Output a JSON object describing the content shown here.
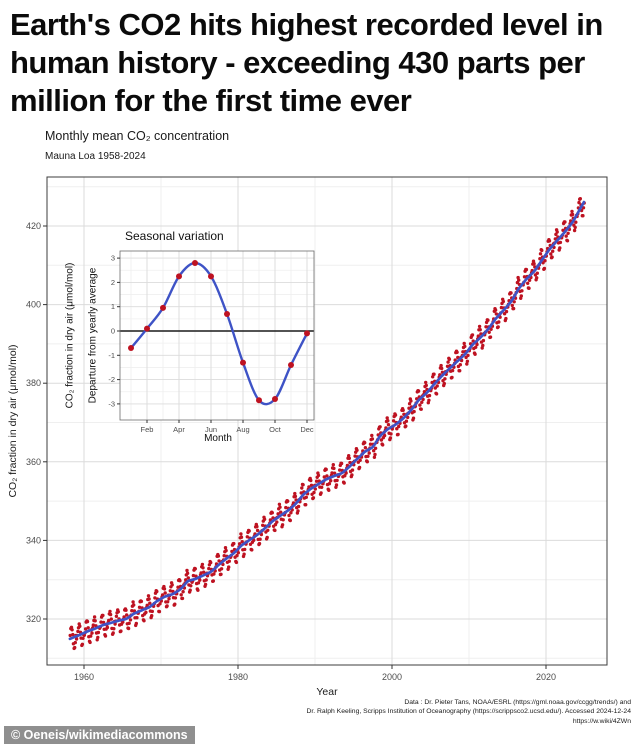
{
  "headline": {
    "lines": [
      "Earth's CO2 hits highest recorded level in",
      "human history - exceeding 430 parts per",
      "million for the first time ever"
    ]
  },
  "figure": {
    "title": "Monthly mean CO₂ concentration",
    "subtitle": "Mauna Loa 1958-2024",
    "x_label": "Year",
    "y_label": "CO₂ fraction in dry air (μmol/mol)",
    "x_ticks": [
      1960,
      1980,
      2000,
      2020
    ],
    "y_ticks": [
      320,
      340,
      360,
      380,
      400,
      420
    ]
  },
  "inset": {
    "title": "Seasonal variation",
    "y_label_line1": "CO₂ fraction in dry air (μmol/mol)",
    "y_label_line2": "Departure from yearly average",
    "x_label": "Month",
    "x_tick_labels": [
      "Feb",
      "Apr",
      "Jun",
      "Aug",
      "Oct",
      "Dec"
    ],
    "y_ticks": [
      3,
      2,
      1,
      0,
      -1,
      -2,
      -3
    ]
  },
  "attribution": {
    "line1": "Data : Dr. Pieter Tans, NOAA/ESRL (https://gml.noaa.gov/ccgg/trends/) and",
    "line2": "Dr. Ralph Keeling, Scripps Institution of Oceanography (https://scrippsco2.ucsd.edu/). Accessed 2024-12-24",
    "line3": "https://w.wiki/4ZWn"
  },
  "watermark": "© Oeneis/wikimediacommons",
  "colors": {
    "point_red": "#BE1221",
    "line_blue": "#3E53C6",
    "grid_major": "#DBDBDB",
    "grid_minor": "#EFEFEF",
    "panel_border": "#3C3C3C",
    "tick_color": "#333333",
    "tick_label": "#4D4D4D",
    "zero_line": "#1A1A1A",
    "watermark_bg": "#8F8F8F",
    "watermark_text": "#FFFFFF"
  },
  "chart_data": {
    "type": "scatter",
    "title": "Monthly mean CO₂ concentration",
    "subtitle": "Mauna Loa 1958-2024",
    "xlabel": "Year",
    "ylabel": "CO₂ fraction in dry air (μmol/mol)",
    "xlim": [
      1955.2,
      2027.9
    ],
    "ylim": [
      308,
      432
    ],
    "x_ticks": [
      1960,
      1980,
      2000,
      2020
    ],
    "y_ticks": [
      320,
      340,
      360,
      380,
      400,
      420
    ],
    "grid": true,
    "series": [
      {
        "name": "Monthly mean CO₂ (red points)",
        "marker": "point",
        "color": "#BE1221",
        "year_start": 1958,
        "first_month_index": 2,
        "annual_means": [
          315.2,
          316.0,
          316.9,
          317.6,
          318.5,
          319.0,
          319.6,
          320.0,
          321.4,
          322.2,
          323.0,
          324.6,
          325.7,
          326.3,
          327.5,
          329.7,
          330.2,
          331.1,
          332.0,
          333.8,
          335.4,
          336.8,
          338.8,
          340.1,
          341.4,
          343.1,
          344.9,
          346.3,
          347.6,
          349.3,
          351.7,
          353.2,
          354.4,
          355.6,
          356.4,
          357.1,
          358.8,
          360.8,
          362.6,
          363.7,
          366.7,
          368.4,
          369.5,
          371.1,
          373.2,
          375.8,
          377.5,
          379.8,
          381.9,
          383.8,
          385.6,
          387.4,
          389.9,
          391.6,
          393.8,
          396.5,
          398.6,
          400.8,
          404.2,
          406.6,
          408.5,
          411.4,
          414.2,
          416.4,
          418.6,
          421.1,
          424.6
        ],
        "note": "monthly values = interpolated annual mean + seasonal departure"
      },
      {
        "name": "Long-term trend (blue line)",
        "marker": "line",
        "color": "#3E53C6"
      }
    ],
    "seasonal_inset": {
      "type": "line",
      "title": "Seasonal variation",
      "xlabel": "Month",
      "ylabel": "Departure from yearly average",
      "categories": [
        "Jan",
        "Feb",
        "Mar",
        "Apr",
        "May",
        "Jun",
        "Jul",
        "Aug",
        "Sep",
        "Oct",
        "Nov",
        "Dec"
      ],
      "values": [
        -0.7,
        0.1,
        0.95,
        2.25,
        2.8,
        2.25,
        0.7,
        -1.3,
        -2.85,
        -2.8,
        -1.4,
        -0.1
      ],
      "y_ticks": [
        3,
        2,
        1,
        0,
        -1,
        -2,
        -3
      ],
      "ylim": [
        -3.65,
        3.3
      ],
      "zero_line": true,
      "legend": "none"
    }
  }
}
